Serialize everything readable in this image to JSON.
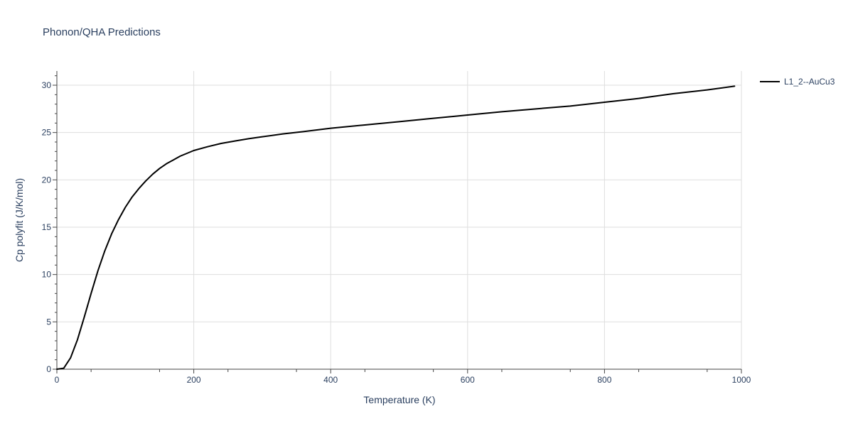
{
  "page": {
    "title": "Phonon/QHA Predictions"
  },
  "chart_data": {
    "type": "line",
    "title": "Phonon/QHA Predictions",
    "xlabel": "Temperature (K)",
    "ylabel": "Cp polyfit (J/K/mol)",
    "xlim": [
      0,
      1000
    ],
    "ylim": [
      0,
      31.5
    ],
    "x_ticks": [
      0,
      200,
      400,
      600,
      800,
      1000
    ],
    "y_ticks": [
      0,
      5,
      10,
      15,
      20,
      25,
      30
    ],
    "x_tick_labels": [
      "0",
      "200",
      "400",
      "600",
      "800",
      "1000"
    ],
    "y_tick_labels": [
      "0",
      "5",
      "10",
      "15",
      "20",
      "25",
      "30"
    ],
    "grid": true,
    "legend": {
      "position": "top-right"
    },
    "series": [
      {
        "name": "L1_2--AuCu3",
        "color": "#000000",
        "x": [
          0,
          10,
          20,
          30,
          40,
          50,
          60,
          70,
          80,
          90,
          100,
          110,
          120,
          130,
          140,
          150,
          160,
          170,
          180,
          190,
          200,
          220,
          240,
          260,
          280,
          300,
          330,
          360,
          400,
          450,
          500,
          550,
          600,
          650,
          700,
          750,
          800,
          850,
          900,
          950,
          990
        ],
        "y": [
          0,
          0.1,
          1.2,
          3.1,
          5.5,
          8.0,
          10.4,
          12.5,
          14.3,
          15.8,
          17.1,
          18.2,
          19.1,
          19.9,
          20.6,
          21.2,
          21.7,
          22.1,
          22.5,
          22.8,
          23.1,
          23.5,
          23.85,
          24.1,
          24.35,
          24.55,
          24.85,
          25.1,
          25.45,
          25.8,
          26.15,
          26.5,
          26.85,
          27.2,
          27.5,
          27.8,
          28.2,
          28.6,
          29.1,
          29.5,
          29.9
        ]
      }
    ]
  }
}
